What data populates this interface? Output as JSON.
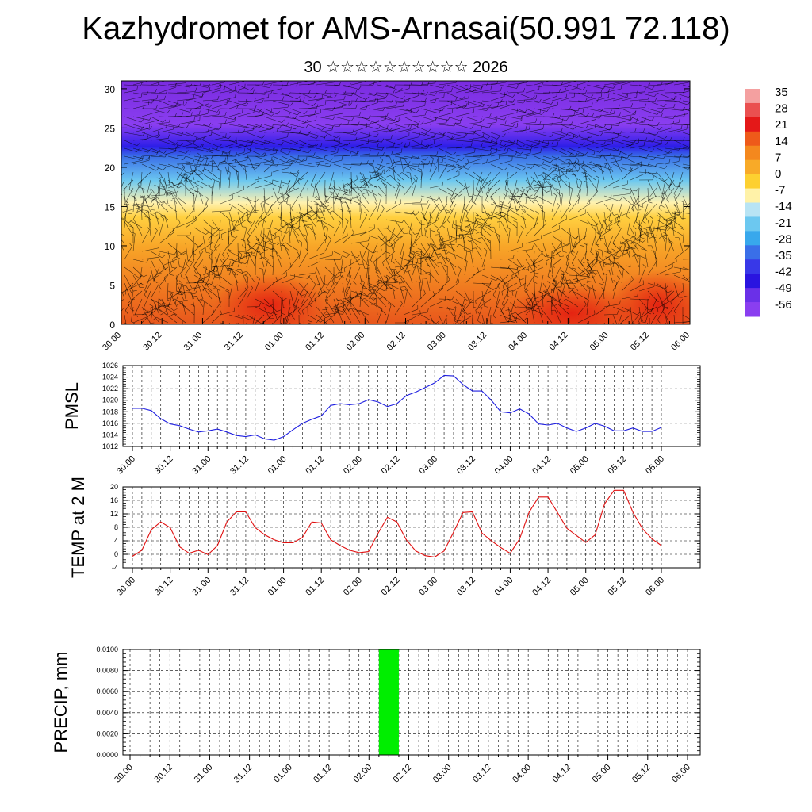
{
  "title": "Kazhydromet for AMS-Arnasai(50.991 72.118)",
  "subtitle": "30 ☆☆☆☆☆☆☆☆☆☆ 2026",
  "colors": {
    "pmsl_line": "#1f1fe0",
    "temp_line": "#e01010",
    "precip_bar": "#00ee00"
  },
  "chart_data": [
    {
      "id": "cross_section",
      "type": "heatmap",
      "title": "",
      "xlabel": "",
      "ylabel": "",
      "x_tick_labels": [
        "30.00",
        "30.12",
        "31.00",
        "31.12",
        "01.00",
        "01.12",
        "02.00",
        "02.12",
        "03.00",
        "03.12",
        "04.00",
        "04.12",
        "05.00",
        "05.12",
        "06.00"
      ],
      "yticks": [
        0,
        5,
        10,
        15,
        20,
        25,
        30
      ],
      "ylim": [
        0,
        31
      ],
      "colorbar": {
        "labels": [
          "35",
          "28",
          "21",
          "14",
          "7",
          "0",
          "-7",
          "-14",
          "-21",
          "-28",
          "-35",
          "-42",
          "-49",
          "-56"
        ],
        "range": [
          -63,
          42
        ]
      },
      "overlay": "wind barbs"
    },
    {
      "id": "pmsl",
      "type": "line",
      "ylabel": "PMSL",
      "ylim": [
        1012,
        1026
      ],
      "yticks": [
        1012,
        1014,
        1016,
        1018,
        1020,
        1022,
        1024,
        1026
      ],
      "x_tick_labels": [
        "30.00",
        "30.12",
        "31.00",
        "31.12",
        "01.00",
        "01.12",
        "02.00",
        "02.12",
        "03.00",
        "03.12",
        "04.00",
        "04.12",
        "05.00",
        "05.12",
        "06.00"
      ],
      "x_step_hours": 3,
      "values": [
        1018.6,
        1018.6,
        1018.2,
        1016.8,
        1015.9,
        1015.6,
        1015.0,
        1014.5,
        1014.7,
        1015.0,
        1014.5,
        1013.9,
        1013.7,
        1014.0,
        1013.3,
        1013.1,
        1013.7,
        1014.9,
        1016.0,
        1016.7,
        1017.3,
        1019.1,
        1019.4,
        1019.2,
        1019.4,
        1020.1,
        1019.7,
        1018.9,
        1019.4,
        1020.8,
        1021.4,
        1022.2,
        1023.0,
        1024.3,
        1024.2,
        1022.7,
        1021.6,
        1021.6,
        1020.0,
        1018.0,
        1017.8,
        1018.5,
        1017.6,
        1015.9,
        1015.7,
        1016.0,
        1015.2,
        1014.6,
        1015.2,
        1016.0,
        1015.5,
        1014.7,
        1014.7,
        1015.2,
        1014.6,
        1014.6,
        1015.3
      ]
    },
    {
      "id": "temp",
      "type": "line",
      "ylabel": "TEMP at 2 M",
      "ylim": [
        -4,
        20
      ],
      "yticks": [
        -4,
        0,
        4,
        8,
        12,
        16,
        20
      ],
      "x_tick_labels": [
        "30.00",
        "30.12",
        "31.00",
        "31.12",
        "01.00",
        "01.12",
        "02.00",
        "02.12",
        "03.00",
        "03.12",
        "04.00",
        "04.12",
        "05.00",
        "05.12",
        "06.00"
      ],
      "x_step_hours": 3,
      "values": [
        -0.6,
        1.2,
        7.3,
        9.6,
        7.9,
        2.2,
        0.3,
        1.2,
        -0.1,
        2.6,
        9.6,
        12.6,
        12.6,
        7.9,
        5.8,
        4.3,
        3.4,
        3.4,
        5.0,
        9.6,
        9.3,
        4.3,
        2.6,
        1.2,
        0.5,
        0.8,
        6.2,
        11.0,
        9.6,
        4.3,
        1.0,
        -0.4,
        -0.8,
        1.0,
        6.6,
        12.4,
        12.6,
        6.3,
        4.0,
        2.0,
        0.3,
        4.6,
        12.5,
        17.0,
        17.0,
        12.4,
        7.7,
        5.6,
        3.5,
        5.8,
        15.0,
        19.0,
        19.0,
        12.4,
        7.6,
        4.6,
        2.6
      ]
    },
    {
      "id": "precip",
      "type": "bar",
      "ylabel": "PRECIP, mm",
      "ylim": [
        0,
        0.01
      ],
      "yticks": [
        "0.0000",
        "0.0020",
        "0.0040",
        "0.0060",
        "0.0080",
        "0.0100"
      ],
      "x_tick_labels": [
        "30.00",
        "30.12",
        "31.00",
        "31.12",
        "01.00",
        "01.12",
        "02.00",
        "02.12",
        "03.00",
        "03.12",
        "04.00",
        "04.12",
        "05.00",
        "05.12",
        "06.00"
      ],
      "bars": [
        {
          "from_hour": 75,
          "to_hour": 81,
          "value": 0.01
        }
      ]
    }
  ]
}
